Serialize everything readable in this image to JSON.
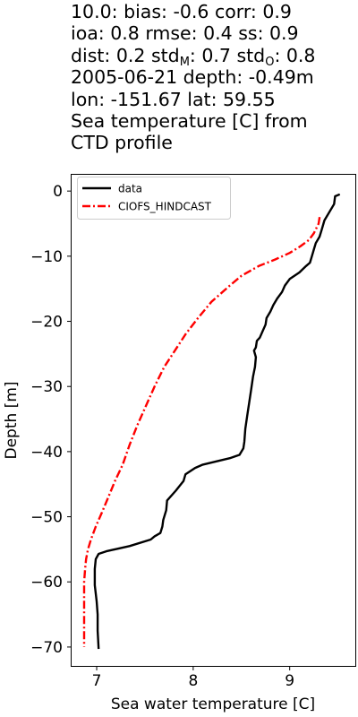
{
  "title": {
    "line1": "10.0: bias: -0.6  corr: 0.9",
    "line2": "ioa: 0.8  rmse: 0.4  ss: 0.9",
    "line3_pre": "dist: 0.2  std",
    "line3_sub1": "M",
    "line3_mid": ": 0.7  std",
    "line3_sub2": "O",
    "line3_post": ": 0.8",
    "line4": "2005-06-21 depth: -0.49m",
    "line5": "lon: -151.67 lat: 59.55",
    "line6": "Sea temperature [C] from",
    "line7": "CTD profile"
  },
  "colors": {
    "data": "#000000",
    "model": "#ff0000",
    "background": "#ffffff"
  },
  "chart_data": {
    "type": "line",
    "title": "10.0: bias: -0.6  corr: 0.9 / ioa: 0.8  rmse: 0.4  ss: 0.9 / dist: 0.2  stdM: 0.7  stdO: 0.8 / 2005-06-21 depth: -0.49m / lon: -151.67 lat: 59.55 / Sea temperature [C] from CTD profile",
    "xlabel": "Sea water temperature [C]",
    "ylabel": "Depth [m]",
    "xlim": [
      6.74,
      9.68
    ],
    "ylim": [
      -72.9,
      2.5
    ],
    "xticks": [
      7,
      8,
      9
    ],
    "xtick_labels": [
      "7",
      "8",
      "9"
    ],
    "yticks": [
      0,
      -10,
      -20,
      -30,
      -40,
      -50,
      -60,
      -70
    ],
    "ytick_labels": [
      "0",
      "−10",
      "−20",
      "−30",
      "−40",
      "−50",
      "−60",
      "−70"
    ],
    "grid": false,
    "legend_position": "upper-left",
    "series": [
      {
        "name": "data",
        "style": "solid",
        "color": "#000000",
        "x": [
          9.52,
          9.47,
          9.46,
          9.36,
          9.33,
          9.31,
          9.27,
          9.25,
          9.23,
          9.21,
          9.17,
          9.1,
          9.0,
          8.95,
          8.92,
          8.87,
          8.83,
          8.8,
          8.76,
          8.75,
          8.72,
          8.69,
          8.66,
          8.65,
          8.63,
          8.65,
          8.64,
          8.62,
          8.6,
          8.58,
          8.56,
          8.54,
          8.53,
          8.52,
          8.48,
          8.38,
          8.24,
          8.1,
          8.02,
          7.92,
          7.9,
          7.82,
          7.73,
          7.72,
          7.69,
          7.68,
          7.66,
          7.6,
          7.56,
          7.34,
          7.1,
          7.02,
          6.99,
          6.98,
          6.98,
          7.0,
          7.01,
          7.01,
          7.02
        ],
        "y": [
          -0.5,
          -0.8,
          -2.0,
          -4.5,
          -6.0,
          -7.0,
          -8.0,
          -9.0,
          -10.0,
          -11.0,
          -11.5,
          -12.5,
          -13.5,
          -14.5,
          -15.5,
          -16.5,
          -17.5,
          -18.5,
          -19.5,
          -20.5,
          -21.5,
          -22.5,
          -23.0,
          -24.0,
          -24.5,
          -25.5,
          -27.0,
          -28.5,
          -30.5,
          -32.5,
          -34.5,
          -36.5,
          -38.5,
          -39.5,
          -40.5,
          -41.0,
          -41.5,
          -42.0,
          -42.5,
          -43.5,
          -44.5,
          -46.0,
          -47.5,
          -49.0,
          -50.5,
          -51.5,
          -52.5,
          -53.0,
          -53.5,
          -54.5,
          -55.3,
          -55.7,
          -56.5,
          -58.0,
          -60.5,
          -63.0,
          -65.0,
          -67.5,
          -70.3
        ]
      },
      {
        "name": "CIOFS_HINDCAST",
        "style": "dashdot",
        "color": "#ff0000",
        "x": [
          9.31,
          9.3,
          9.25,
          9.2,
          9.11,
          9.0,
          8.85,
          8.68,
          8.5,
          8.38,
          8.19,
          8.05,
          7.92,
          7.81,
          7.7,
          7.6,
          7.51,
          7.42,
          7.34,
          7.27,
          7.19,
          7.12,
          7.05,
          6.99,
          6.94,
          6.91,
          6.89,
          6.88,
          6.87,
          6.87,
          6.87,
          6.87,
          6.87,
          6.87
        ],
        "y": [
          -4.0,
          -5.0,
          -6.5,
          -7.5,
          -8.5,
          -9.5,
          -10.5,
          -11.5,
          -13.0,
          -14.5,
          -17.0,
          -19.5,
          -22.0,
          -24.5,
          -27.0,
          -30.0,
          -33.0,
          -36.0,
          -39.0,
          -42.0,
          -44.5,
          -47.0,
          -49.5,
          -51.5,
          -53.5,
          -55.0,
          -56.5,
          -58.0,
          -60.0,
          -62.0,
          -64.0,
          -66.0,
          -68.0,
          -70.0
        ]
      }
    ]
  }
}
